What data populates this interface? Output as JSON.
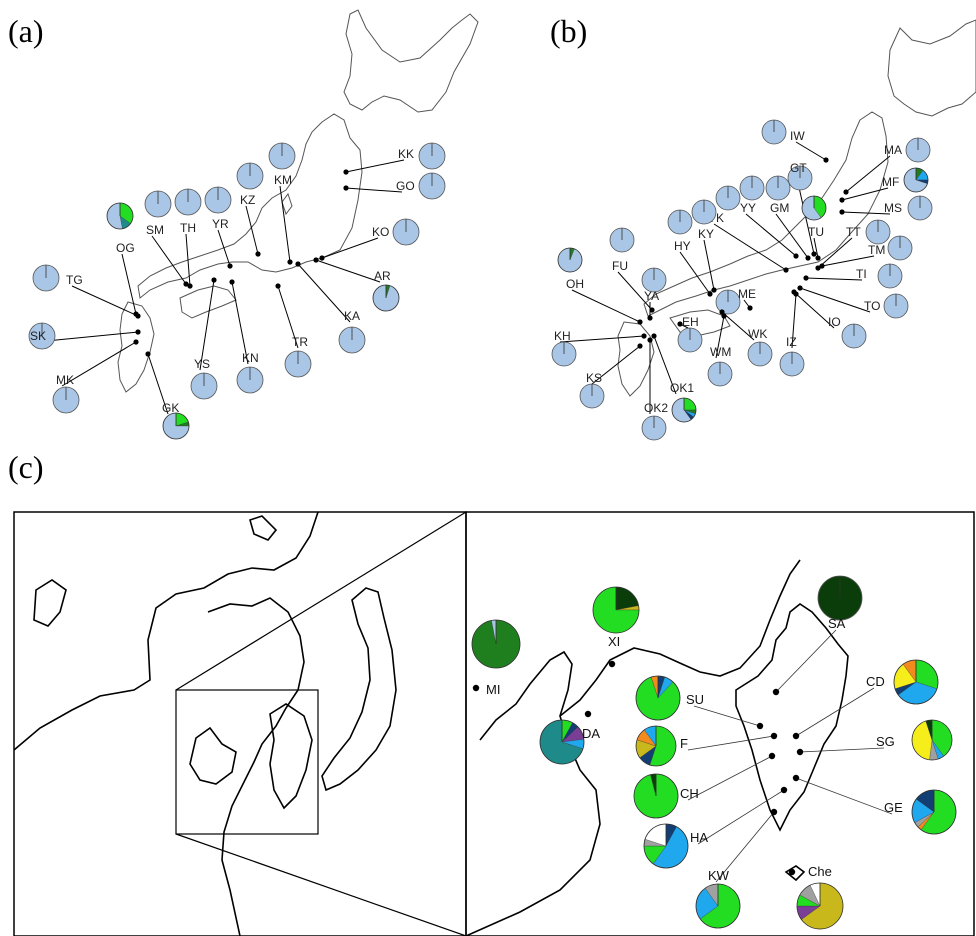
{
  "colors": {
    "pale_blue": "#a9c6e6",
    "green": "#22dd22",
    "teal": "#1e8a8a",
    "dark_green": "#0b3d0b",
    "forest_green": "#1f7f1f",
    "sky_blue": "#20a8ee",
    "navy": "#123e74",
    "yellow": "#f5ee1a",
    "orange": "#f28a1e",
    "olive_yellow": "#c9b81c",
    "purple": "#7a3e96",
    "gray": "#a0a0a0",
    "white": "#ffffff"
  },
  "panels": {
    "a": {
      "label": "(a)",
      "sites": [
        {
          "name": "KK",
          "pie": [
            {
              "c": "pale_blue",
              "v": 1
            }
          ]
        },
        {
          "name": "GO",
          "pie": [
            {
              "c": "pale_blue",
              "v": 1
            }
          ]
        },
        {
          "name": "KM",
          "pie": [
            {
              "c": "pale_blue",
              "v": 1
            }
          ]
        },
        {
          "name": "KZ",
          "pie": [
            {
              "c": "pale_blue",
              "v": 1
            }
          ]
        },
        {
          "name": "KO",
          "pie": [
            {
              "c": "pale_blue",
              "v": 1
            }
          ]
        },
        {
          "name": "YR",
          "pie": [
            {
              "c": "pale_blue",
              "v": 1
            }
          ]
        },
        {
          "name": "TH",
          "pie": [
            {
              "c": "pale_blue",
              "v": 1
            }
          ]
        },
        {
          "name": "SM",
          "pie": [
            {
              "c": "pale_blue",
              "v": 1
            }
          ]
        },
        {
          "name": "OG",
          "pie": [
            {
              "c": "green",
              "v": 0.35
            },
            {
              "c": "teal",
              "v": 0.12
            },
            {
              "c": "pale_blue",
              "v": 0.53
            }
          ]
        },
        {
          "name": "TG",
          "pie": [
            {
              "c": "pale_blue",
              "v": 1
            }
          ]
        },
        {
          "name": "AR",
          "pie": [
            {
              "c": "forest_green",
              "v": 0.05
            },
            {
              "c": "pale_blue",
              "v": 0.95
            }
          ]
        },
        {
          "name": "KA",
          "pie": [
            {
              "c": "pale_blue",
              "v": 1
            }
          ]
        },
        {
          "name": "SK",
          "pie": [
            {
              "c": "pale_blue",
              "v": 1
            }
          ]
        },
        {
          "name": "MK",
          "pie": [
            {
              "c": "pale_blue",
              "v": 1
            }
          ]
        },
        {
          "name": "YS",
          "pie": [
            {
              "c": "pale_blue",
              "v": 1
            }
          ]
        },
        {
          "name": "KN",
          "pie": [
            {
              "c": "pale_blue",
              "v": 1
            }
          ]
        },
        {
          "name": "TR",
          "pie": [
            {
              "c": "pale_blue",
              "v": 1
            }
          ]
        },
        {
          "name": "GK",
          "pie": [
            {
              "c": "green",
              "v": 0.2
            },
            {
              "c": "forest_green",
              "v": 0.05
            },
            {
              "c": "pale_blue",
              "v": 0.75
            }
          ]
        }
      ]
    },
    "b": {
      "label": "(b)",
      "sites": [
        {
          "name": "IW",
          "pie": [
            {
              "c": "pale_blue",
              "v": 1
            }
          ]
        },
        {
          "name": "MA",
          "pie": [
            {
              "c": "pale_blue",
              "v": 1
            }
          ]
        },
        {
          "name": "MF",
          "pie": [
            {
              "c": "forest_green",
              "v": 0.1
            },
            {
              "c": "sky_blue",
              "v": 0.15
            },
            {
              "c": "navy",
              "v": 0.05
            },
            {
              "c": "pale_blue",
              "v": 0.7
            }
          ]
        },
        {
          "name": "MS",
          "pie": [
            {
              "c": "pale_blue",
              "v": 1
            }
          ]
        },
        {
          "name": "GT",
          "pie": [
            {
              "c": "pale_blue",
              "v": 1
            }
          ]
        },
        {
          "name": "TU",
          "pie": [
            {
              "c": "green",
              "v": 0.4
            },
            {
              "c": "pale_blue",
              "v": 0.6
            }
          ]
        },
        {
          "name": "GM",
          "pie": [
            {
              "c": "pale_blue",
              "v": 1
            }
          ]
        },
        {
          "name": "YY",
          "pie": [
            {
              "c": "pale_blue",
              "v": 1
            }
          ]
        },
        {
          "name": "YK",
          "pie": [
            {
              "c": "pale_blue",
              "v": 1
            }
          ]
        },
        {
          "name": "KY",
          "pie": [
            {
              "c": "pale_blue",
              "v": 1
            }
          ]
        },
        {
          "name": "HY",
          "pie": [
            {
              "c": "pale_blue",
              "v": 1
            }
          ]
        },
        {
          "name": "TT",
          "pie": [
            {
              "c": "pale_blue",
              "v": 1
            }
          ]
        },
        {
          "name": "TM",
          "pie": [
            {
              "c": "pale_blue",
              "v": 1
            }
          ]
        },
        {
          "name": "TI",
          "pie": [
            {
              "c": "pale_blue",
              "v": 1
            }
          ]
        },
        {
          "name": "FU",
          "pie": [
            {
              "c": "pale_blue",
              "v": 1
            }
          ]
        },
        {
          "name": "OH",
          "pie": [
            {
              "c": "forest_green",
              "v": 0.06
            },
            {
              "c": "pale_blue",
              "v": 0.94
            }
          ]
        },
        {
          "name": "YA",
          "pie": [
            {
              "c": "pale_blue",
              "v": 1
            }
          ]
        },
        {
          "name": "ME",
          "pie": [
            {
              "c": "pale_blue",
              "v": 1
            }
          ]
        },
        {
          "name": "EH",
          "pie": [
            {
              "c": "pale_blue",
              "v": 1
            }
          ]
        },
        {
          "name": "TO",
          "pie": [
            {
              "c": "pale_blue",
              "v": 1
            }
          ]
        },
        {
          "name": "IO",
          "pie": [
            {
              "c": "pale_blue",
              "v": 1
            }
          ]
        },
        {
          "name": "KH",
          "pie": [
            {
              "c": "pale_blue",
              "v": 1
            }
          ]
        },
        {
          "name": "WK",
          "pie": [
            {
              "c": "pale_blue",
              "v": 1
            }
          ]
        },
        {
          "name": "IZ",
          "pie": [
            {
              "c": "pale_blue",
              "v": 1
            }
          ]
        },
        {
          "name": "WM",
          "pie": [
            {
              "c": "pale_blue",
              "v": 1
            }
          ]
        },
        {
          "name": "KS",
          "pie": [
            {
              "c": "pale_blue",
              "v": 1
            }
          ]
        },
        {
          "name": "OK1",
          "pie": [
            {
              "c": "green",
              "v": 0.25
            },
            {
              "c": "forest_green",
              "v": 0.05
            },
            {
              "c": "sky_blue",
              "v": 0.05
            },
            {
              "c": "navy",
              "v": 0.05
            },
            {
              "c": "pale_blue",
              "v": 0.6
            }
          ]
        },
        {
          "name": "OK2",
          "pie": [
            {
              "c": "pale_blue",
              "v": 1
            }
          ]
        }
      ]
    },
    "c": {
      "label": "(c)",
      "sites": [
        {
          "name": "MI",
          "pie": [
            {
              "c": "forest_green",
              "v": 0.97
            },
            {
              "c": "pale_blue",
              "v": 0.03
            }
          ]
        },
        {
          "name": "XI",
          "pie": [
            {
              "c": "dark_green",
              "v": 0.22
            },
            {
              "c": "olive_yellow",
              "v": 0.03
            },
            {
              "c": "green",
              "v": 0.75
            }
          ]
        },
        {
          "name": "SA",
          "pie": [
            {
              "c": "dark_green",
              "v": 1
            }
          ]
        },
        {
          "name": "DA",
          "pie": [
            {
              "c": "green",
              "v": 0.08
            },
            {
              "c": "navy",
              "v": 0.05
            },
            {
              "c": "purple",
              "v": 0.1
            },
            {
              "c": "sky_blue",
              "v": 0.07
            },
            {
              "c": "teal",
              "v": 0.7
            }
          ]
        },
        {
          "name": "SU",
          "pie": [
            {
              "c": "navy",
              "v": 0.05
            },
            {
              "c": "sky_blue",
              "v": 0.07
            },
            {
              "c": "green",
              "v": 0.83
            },
            {
              "c": "orange",
              "v": 0.05
            }
          ]
        },
        {
          "name": "F",
          "pie": [
            {
              "c": "green",
              "v": 0.55
            },
            {
              "c": "navy",
              "v": 0.1
            },
            {
              "c": "olive_yellow",
              "v": 0.15
            },
            {
              "c": "orange",
              "v": 0.1
            },
            {
              "c": "sky_blue",
              "v": 0.1
            }
          ]
        },
        {
          "name": "CH",
          "pie": [
            {
              "c": "green",
              "v": 0.96
            },
            {
              "c": "dark_green",
              "v": 0.04
            }
          ]
        },
        {
          "name": "HA",
          "pie": [
            {
              "c": "navy",
              "v": 0.08
            },
            {
              "c": "sky_blue",
              "v": 0.52
            },
            {
              "c": "green",
              "v": 0.15
            },
            {
              "c": "gray",
              "v": 0.05
            },
            {
              "c": "white",
              "v": 0.2
            }
          ]
        },
        {
          "name": "KW",
          "pie": [
            {
              "c": "green",
              "v": 0.65
            },
            {
              "c": "sky_blue",
              "v": 0.25
            },
            {
              "c": "gray",
              "v": 0.1
            }
          ]
        },
        {
          "name": "CD",
          "pie": [
            {
              "c": "green",
              "v": 0.3
            },
            {
              "c": "sky_blue",
              "v": 0.35
            },
            {
              "c": "navy",
              "v": 0.05
            },
            {
              "c": "yellow",
              "v": 0.2
            },
            {
              "c": "orange",
              "v": 0.1
            }
          ]
        },
        {
          "name": "SG",
          "pie": [
            {
              "c": "green",
              "v": 0.4
            },
            {
              "c": "sky_blue",
              "v": 0.05
            },
            {
              "c": "gray",
              "v": 0.07
            },
            {
              "c": "yellow",
              "v": 0.43
            },
            {
              "c": "dark_green",
              "v": 0.05
            }
          ]
        },
        {
          "name": "GE",
          "pie": [
            {
              "c": "green",
              "v": 0.6
            },
            {
              "c": "orange",
              "v": 0.03
            },
            {
              "c": "gray",
              "v": 0.04
            },
            {
              "c": "sky_blue",
              "v": 0.18
            },
            {
              "c": "navy",
              "v": 0.15
            }
          ]
        },
        {
          "name": "Che",
          "pie": [
            {
              "c": "olive_yellow",
              "v": 0.65
            },
            {
              "c": "purple",
              "v": 0.1
            },
            {
              "c": "green",
              "v": 0.08
            },
            {
              "c": "gray",
              "v": 0.1
            },
            {
              "c": "white",
              "v": 0.07
            }
          ]
        }
      ]
    }
  }
}
